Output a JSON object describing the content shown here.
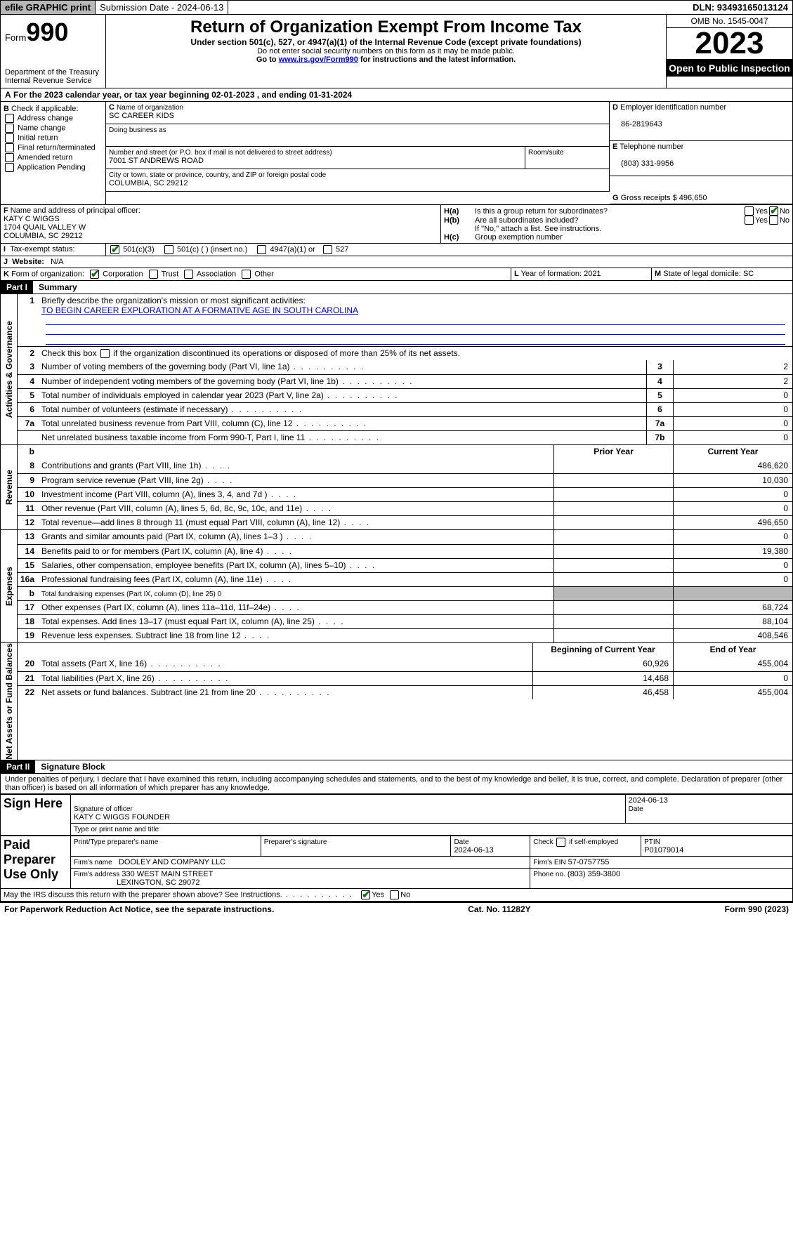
{
  "topbar": {
    "efile": "efile GRAPHIC print",
    "submission": "Submission Date - 2024-06-13",
    "dln": "DLN: 93493165013124"
  },
  "header": {
    "form_prefix": "Form",
    "form_num": "990",
    "dept": "Department of the Treasury Internal Revenue Service",
    "title": "Return of Organization Exempt From Income Tax",
    "subtitle": "Under section 501(c), 527, or 4947(a)(1) of the Internal Revenue Code (except private foundations)",
    "note1": "Do not enter social security numbers on this form as it may be made public.",
    "note2_pre": "Go to ",
    "note2_link": "www.irs.gov/Form990",
    "note2_post": " for instructions and the latest information.",
    "omb": "OMB No. 1545-0047",
    "year": "2023",
    "open": "Open to Public Inspection"
  },
  "A": {
    "text": "For the 2023 calendar year, or tax year beginning 02-01-2023   , and ending 01-31-2024"
  },
  "B": {
    "label": "Check if applicable:",
    "opts": [
      "Address change",
      "Name change",
      "Initial return",
      "Final return/terminated",
      "Amended return",
      "Application Pending"
    ]
  },
  "C": {
    "name_lbl": "Name of organization",
    "name": "SC CAREER KIDS",
    "dba_lbl": "Doing business as",
    "dba": "",
    "street_lbl": "Number and street (or P.O. box if mail is not delivered to street address)",
    "street": "7001 ST ANDREWS ROAD",
    "room_lbl": "Room/suite",
    "city_lbl": "City or town, state or province, country, and ZIP or foreign postal code",
    "city": "COLUMBIA, SC  29212"
  },
  "D": {
    "lbl": "Employer identification number",
    "val": "86-2819643"
  },
  "E": {
    "lbl": "Telephone number",
    "val": "(803) 331-9956"
  },
  "G": {
    "lbl": "Gross receipts $",
    "val": "496,650"
  },
  "F": {
    "lbl": "Name and address of principal officer:",
    "name": "KATY C WIGGS",
    "addr1": "1704 QUAIL VALLEY W",
    "addr2": "COLUMBIA, SC  29212"
  },
  "H": {
    "a": "Is this a group return for subordinates?",
    "b": "Are all subordinates included?",
    "b_note": "If \"No,\" attach a list. See instructions.",
    "c": "Group exemption number"
  },
  "I": {
    "lbl": "Tax-exempt status:",
    "opts": [
      "501(c)(3)",
      "501(c) (  ) (insert no.)",
      "4947(a)(1) or",
      "527"
    ]
  },
  "J": {
    "lbl": "Website:",
    "val": "N/A"
  },
  "K": {
    "lbl": "Form of organization:",
    "opts": [
      "Corporation",
      "Trust",
      "Association",
      "Other"
    ]
  },
  "L": {
    "lbl": "Year of formation:",
    "val": "2021"
  },
  "M": {
    "lbl": "State of legal domicile:",
    "val": "SC"
  },
  "part1": {
    "hdr": "Part I",
    "title": "Summary",
    "q1": "Briefly describe the organization's mission or most significant activities:",
    "mission": "TO BEGIN CAREER EXPLORATION AT A FORMATIVE AGE IN SOUTH CAROLINA",
    "q2": "Check this box       if the organization discontinued its operations or disposed of more than 25% of its net assets.",
    "rows_gov": [
      {
        "n": "3",
        "t": "Number of voting members of the governing body (Part VI, line 1a)",
        "box": "3",
        "v": "2"
      },
      {
        "n": "4",
        "t": "Number of independent voting members of the governing body (Part VI, line 1b)",
        "box": "4",
        "v": "2"
      },
      {
        "n": "5",
        "t": "Total number of individuals employed in calendar year 2023 (Part V, line 2a)",
        "box": "5",
        "v": "0"
      },
      {
        "n": "6",
        "t": "Total number of volunteers (estimate if necessary)",
        "box": "6",
        "v": "0"
      },
      {
        "n": "7a",
        "t": "Total unrelated business revenue from Part VIII, column (C), line 12",
        "box": "7a",
        "v": "0"
      },
      {
        "n": "",
        "t": "Net unrelated business taxable income from Form 990-T, Part I, line 11",
        "box": "7b",
        "v": "0"
      }
    ],
    "col_prior": "Prior Year",
    "col_curr": "Current Year",
    "rows_rev": [
      {
        "n": "8",
        "t": "Contributions and grants (Part VIII, line 1h)",
        "p": "",
        "c": "486,620"
      },
      {
        "n": "9",
        "t": "Program service revenue (Part VIII, line 2g)",
        "p": "",
        "c": "10,030"
      },
      {
        "n": "10",
        "t": "Investment income (Part VIII, column (A), lines 3, 4, and 7d )",
        "p": "",
        "c": "0"
      },
      {
        "n": "11",
        "t": "Other revenue (Part VIII, column (A), lines 5, 6d, 8c, 9c, 10c, and 11e)",
        "p": "",
        "c": "0"
      },
      {
        "n": "12",
        "t": "Total revenue—add lines 8 through 11 (must equal Part VIII, column (A), line 12)",
        "p": "",
        "c": "496,650"
      }
    ],
    "rows_exp": [
      {
        "n": "13",
        "t": "Grants and similar amounts paid (Part IX, column (A), lines 1–3 )",
        "p": "",
        "c": "0"
      },
      {
        "n": "14",
        "t": "Benefits paid to or for members (Part IX, column (A), line 4)",
        "p": "",
        "c": "19,380"
      },
      {
        "n": "15",
        "t": "Salaries, other compensation, employee benefits (Part IX, column (A), lines 5–10)",
        "p": "",
        "c": "0"
      },
      {
        "n": "16a",
        "t": "Professional fundraising fees (Part IX, column (A), line 11e)",
        "p": "",
        "c": "0"
      },
      {
        "n": "b",
        "t": "Total fundraising expenses (Part IX, column (D), line 25) 0",
        "p": "grey",
        "c": "grey"
      },
      {
        "n": "17",
        "t": "Other expenses (Part IX, column (A), lines 11a–11d, 11f–24e)",
        "p": "",
        "c": "68,724"
      },
      {
        "n": "18",
        "t": "Total expenses. Add lines 13–17 (must equal Part IX, column (A), line 25)",
        "p": "",
        "c": "88,104"
      },
      {
        "n": "19",
        "t": "Revenue less expenses. Subtract line 18 from line 12",
        "p": "",
        "c": "408,546"
      }
    ],
    "col_beg": "Beginning of Current Year",
    "col_end": "End of Year",
    "rows_net": [
      {
        "n": "20",
        "t": "Total assets (Part X, line 16)",
        "p": "60,926",
        "c": "455,004"
      },
      {
        "n": "21",
        "t": "Total liabilities (Part X, line 26)",
        "p": "14,468",
        "c": "0"
      },
      {
        "n": "22",
        "t": "Net assets or fund balances. Subtract line 21 from line 20",
        "p": "46,458",
        "c": "455,004"
      }
    ]
  },
  "part2": {
    "hdr": "Part II",
    "title": "Signature Block",
    "decl": "Under penalties of perjury, I declare that I have examined this return, including accompanying schedules and statements, and to the best of my knowledge and belief, it is true, correct, and complete. Declaration of preparer (other than officer) is based on all information of which preparer has any knowledge."
  },
  "sign": {
    "here": "Sign Here",
    "sig_lbl": "Signature of officer",
    "date_lbl": "Date",
    "date": "2024-06-13",
    "name": "KATY C WIGGS  FOUNDER",
    "name_lbl": "Type or print name and title"
  },
  "paid": {
    "here": "Paid Preparer Use Only",
    "prep_name_lbl": "Print/Type preparer's name",
    "prep_sig_lbl": "Preparer's signature",
    "date_lbl": "Date",
    "date": "2024-06-13",
    "self_lbl": "Check       if self-employed",
    "ptin_lbl": "PTIN",
    "ptin": "P01079014",
    "firm_name_lbl": "Firm's name",
    "firm_name": "DOOLEY AND COMPANY LLC",
    "firm_ein_lbl": "Firm's EIN",
    "firm_ein": "57-0757755",
    "firm_addr_lbl": "Firm's address",
    "firm_addr1": "330 WEST MAIN STREET",
    "firm_addr2": "LEXINGTON, SC  29072",
    "phone_lbl": "Phone no.",
    "phone": "(803) 359-3800"
  },
  "discuss": "May the IRS discuss this return with the preparer shown above? See Instructions.",
  "footer": {
    "l": "For Paperwork Reduction Act Notice, see the separate instructions.",
    "m": "Cat. No. 11282Y",
    "r_pre": "Form ",
    "r_b": "990",
    "r_post": " (2023)"
  },
  "yesno": {
    "yes": "Yes",
    "no": "No"
  },
  "letters": {
    "A": "A",
    "B": "B",
    "C": "C",
    "D": "D",
    "E": "E",
    "F": "F",
    "G": "G",
    "Ha": "H(a)",
    "Hb": "H(b)",
    "Hc": "H(c)",
    "I": "I",
    "J": "J",
    "K": "K",
    "L": "L",
    "M": "M"
  }
}
